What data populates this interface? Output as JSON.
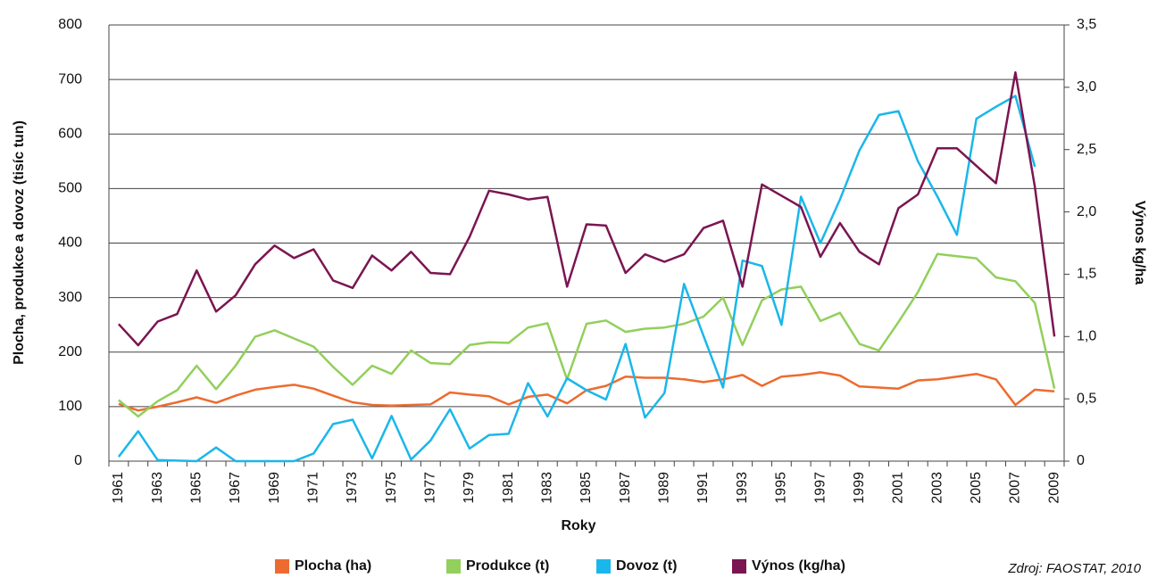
{
  "chart_data": {
    "type": "line",
    "x_label": "Roky",
    "y_label": "Plocha, produkce a dovoz (tisíc tun)",
    "y2_label": "Výnos kg/ha",
    "source": "Zdroj: FAOSTAT, 2010",
    "categories": [
      "1961",
      null,
      "1963",
      null,
      "1965",
      null,
      "1967",
      null,
      "1969",
      null,
      "1971",
      null,
      "1973",
      null,
      "1975",
      null,
      "1977",
      null,
      "1979",
      null,
      "1981",
      null,
      "1983",
      null,
      "1985",
      null,
      "1987",
      null,
      "1989",
      null,
      "1991",
      null,
      "1993",
      null,
      "1995",
      null,
      "1997",
      null,
      "1999",
      null,
      "2001",
      null,
      "2003",
      null,
      "2005",
      null,
      "2007",
      null,
      "2009"
    ],
    "ylim": [
      0,
      800
    ],
    "yticks": [
      0,
      100,
      200,
      300,
      400,
      500,
      600,
      700,
      800
    ],
    "y2lim": [
      0,
      3.5
    ],
    "y2ticks": [
      0,
      {
        "value": 0.5,
        "label": "0,5"
      },
      {
        "value": 1,
        "label": "1,0"
      },
      {
        "value": 1.5,
        "label": "1,5"
      },
      {
        "value": 2,
        "label": "2,0"
      },
      {
        "value": 2.5,
        "label": "2,5"
      },
      {
        "value": 3,
        "label": "3,0"
      },
      {
        "value": 3.5,
        "label": "3,5"
      }
    ],
    "grid": true,
    "legend": "bottom",
    "series": [
      {
        "name": "Plocha (ha)",
        "color": "#ed6b2f",
        "values": [
          105,
          93,
          100,
          108,
          117,
          107,
          120,
          131,
          136,
          140,
          133,
          120,
          108,
          103,
          102,
          103,
          104,
          126,
          122,
          119,
          104,
          118,
          122,
          106,
          130,
          138,
          155,
          153,
          153,
          150,
          145,
          150,
          158,
          138,
          155,
          158,
          163,
          157,
          137,
          135,
          133,
          148,
          150,
          155,
          160,
          150,
          103,
          131,
          128
        ]
      },
      {
        "name": "Produkce (t)",
        "color": "#92cf5c",
        "values": [
          112,
          82,
          110,
          130,
          175,
          132,
          175,
          228,
          240,
          225,
          210,
          173,
          140,
          175,
          160,
          203,
          180,
          178,
          213,
          218,
          217,
          245,
          253,
          150,
          252,
          258,
          237,
          243,
          245,
          252,
          265,
          300,
          213,
          295,
          315,
          320,
          257,
          272,
          215,
          203,
          255,
          310,
          380,
          376,
          372,
          337,
          330,
          290,
          133
        ]
      },
      {
        "name": "Dovoz (t)",
        "color": "#1ab7ea",
        "values": [
          8,
          55,
          2,
          1,
          0,
          25,
          0,
          0,
          0,
          0,
          14,
          68,
          76,
          5,
          83,
          3,
          38,
          95,
          23,
          48,
          50,
          143,
          82,
          152,
          130,
          113,
          215,
          80,
          125,
          325,
          230,
          135,
          368,
          358,
          250,
          485,
          400,
          480,
          570,
          635,
          642,
          550,
          485,
          415,
          628,
          650,
          670,
          540,
          null
        ]
      },
      {
        "name": "Výnos (kg/ha)",
        "color": "#7b1551",
        "axis": "y2",
        "values": [
          1.1,
          0.93,
          1.12,
          1.18,
          1.53,
          1.2,
          1.33,
          1.58,
          1.73,
          1.63,
          1.7,
          1.45,
          1.39,
          1.65,
          1.53,
          1.68,
          1.51,
          1.5,
          1.8,
          2.17,
          2.14,
          2.1,
          2.12,
          1.4,
          1.9,
          1.89,
          1.51,
          1.66,
          1.6,
          1.66,
          1.87,
          1.93,
          1.4,
          2.22,
          2.13,
          2.04,
          1.64,
          1.91,
          1.68,
          1.58,
          2.03,
          2.14,
          2.51,
          2.51,
          2.37,
          2.23,
          3.12,
          2.2,
          1.0
        ]
      }
    ]
  }
}
